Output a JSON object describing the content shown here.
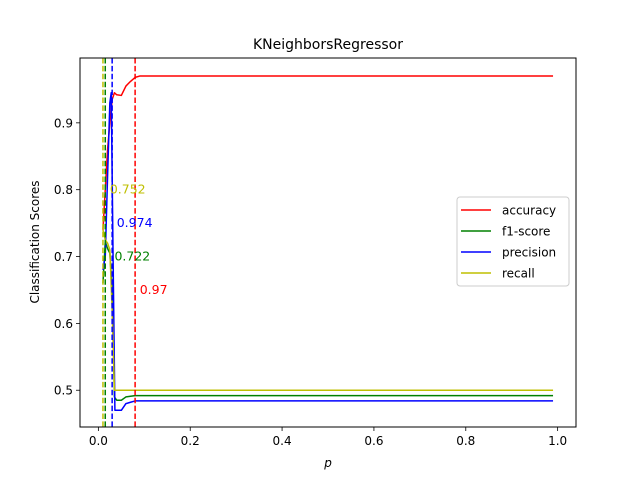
{
  "chart_data": {
    "type": "line",
    "title": "KNeighborsRegressor",
    "xlabel": "p",
    "ylabel": "Classification Scores",
    "xlim": [
      -0.04,
      1.04
    ],
    "ylim": [
      0.445,
      0.997
    ],
    "xticks": [
      0.0,
      0.2,
      0.4,
      0.6,
      0.8,
      1.0
    ],
    "xtick_labels": [
      "0.0",
      "0.2",
      "0.4",
      "0.6",
      "0.8",
      "1.0"
    ],
    "yticks": [
      0.5,
      0.6,
      0.7,
      0.8,
      0.9
    ],
    "ytick_labels": [
      "0.5",
      "0.6",
      "0.7",
      "0.8",
      "0.9"
    ],
    "grid": false,
    "legend_position": "center-right",
    "series": [
      {
        "name": "accuracy",
        "color": "#ff0000",
        "points": [
          [
            0.01,
            0.74
          ],
          [
            0.015,
            0.8
          ],
          [
            0.02,
            0.86
          ],
          [
            0.025,
            0.9
          ],
          [
            0.03,
            0.935
          ],
          [
            0.035,
            0.945
          ],
          [
            0.04,
            0.942
          ],
          [
            0.05,
            0.941
          ],
          [
            0.06,
            0.955
          ],
          [
            0.07,
            0.962
          ],
          [
            0.08,
            0.968
          ],
          [
            0.09,
            0.97
          ],
          [
            0.99,
            0.97
          ]
        ]
      },
      {
        "name": "f1-score",
        "color": "#008000",
        "points": [
          [
            0.01,
            0.66
          ],
          [
            0.015,
            0.722
          ],
          [
            0.02,
            0.712
          ],
          [
            0.025,
            0.705
          ],
          [
            0.03,
            0.65
          ],
          [
            0.035,
            0.49
          ],
          [
            0.04,
            0.485
          ],
          [
            0.05,
            0.485
          ],
          [
            0.06,
            0.49
          ],
          [
            0.07,
            0.491
          ],
          [
            0.08,
            0.492
          ],
          [
            0.99,
            0.492
          ]
        ]
      },
      {
        "name": "precision",
        "color": "#0000ff",
        "points": [
          [
            0.01,
            0.68
          ],
          [
            0.015,
            0.7
          ],
          [
            0.02,
            0.82
          ],
          [
            0.025,
            0.93
          ],
          [
            0.028,
            0.945
          ],
          [
            0.032,
            0.7
          ],
          [
            0.036,
            0.47
          ],
          [
            0.05,
            0.47
          ],
          [
            0.06,
            0.48
          ],
          [
            0.07,
            0.482
          ],
          [
            0.08,
            0.484
          ],
          [
            0.99,
            0.484
          ]
        ]
      },
      {
        "name": "recall",
        "color": "#bfbf00",
        "points": [
          [
            0.01,
            0.74
          ],
          [
            0.015,
            0.725
          ],
          [
            0.02,
            0.72
          ],
          [
            0.025,
            0.71
          ],
          [
            0.03,
            0.62
          ],
          [
            0.035,
            0.5
          ],
          [
            0.99,
            0.5
          ]
        ]
      }
    ],
    "vlines": [
      {
        "x": 0.08,
        "color": "#ff0000",
        "series": "accuracy"
      },
      {
        "x": 0.015,
        "color": "#008000",
        "series": "f1-score"
      },
      {
        "x": 0.03,
        "color": "#0000ff",
        "series": "precision"
      },
      {
        "x": 0.01,
        "color": "#bfbf00",
        "series": "recall"
      }
    ],
    "annotations": [
      {
        "text": "0.97",
        "x": 0.09,
        "y": 0.65,
        "color": "#ff0000"
      },
      {
        "text": "0.722",
        "x": 0.035,
        "y": 0.7,
        "color": "#008000"
      },
      {
        "text": "0.974",
        "x": 0.04,
        "y": 0.75,
        "color": "#0000ff"
      },
      {
        "text": "0.752",
        "x": 0.025,
        "y": 0.8,
        "color": "#bfbf00"
      }
    ]
  }
}
